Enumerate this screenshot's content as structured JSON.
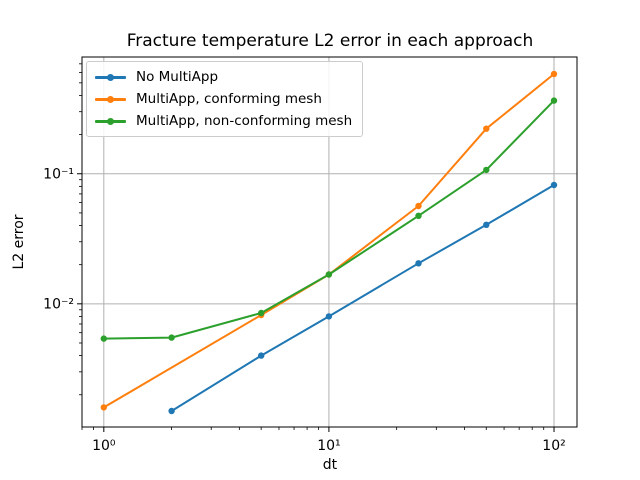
{
  "chart_data": {
    "type": "line",
    "title": "Fracture temperature L2 error in each approach",
    "xlabel": "dt",
    "ylabel": "L2 error",
    "xscale": "log",
    "yscale": "log",
    "xlim": [
      0.8,
      126.5
    ],
    "ylim": [
      0.00113,
      0.79
    ],
    "grid": true,
    "grid_color": "#b0b0b0",
    "spine_color": "#000000",
    "background_color": "#ffffff",
    "x_ticks": [
      {
        "value": 1,
        "label": "10⁰"
      },
      {
        "value": 10,
        "label": "10¹"
      },
      {
        "value": 100,
        "label": "10²"
      }
    ],
    "y_ticks": [
      {
        "value": 0.1,
        "label": "10⁻¹"
      },
      {
        "value": 0.01,
        "label": "10⁻²"
      }
    ],
    "legend": {
      "position": "upper left",
      "entries": [
        "No MultiApp",
        "MultiApp, conforming mesh",
        "MultiApp, non-conforming mesh"
      ]
    },
    "series": [
      {
        "name": "No MultiApp",
        "color": "#1f77b4",
        "marker": "point",
        "x": [
          2,
          5,
          10,
          25,
          50,
          100
        ],
        "y": [
          0.0015,
          0.004,
          0.008,
          0.0205,
          0.0405,
          0.082
        ]
      },
      {
        "name": "MultiApp, conforming mesh",
        "color": "#ff7f0e",
        "marker": "point",
        "x": [
          1,
          5,
          10,
          25,
          50,
          100
        ],
        "y": [
          0.0016,
          0.0082,
          0.0168,
          0.0565,
          0.222,
          0.585
        ]
      },
      {
        "name": "MultiApp, non-conforming mesh",
        "color": "#2ca02c",
        "marker": "point",
        "x": [
          1,
          2,
          5,
          10,
          25,
          50,
          100
        ],
        "y": [
          0.0054,
          0.0055,
          0.0085,
          0.0168,
          0.0475,
          0.107,
          0.365
        ]
      }
    ]
  }
}
